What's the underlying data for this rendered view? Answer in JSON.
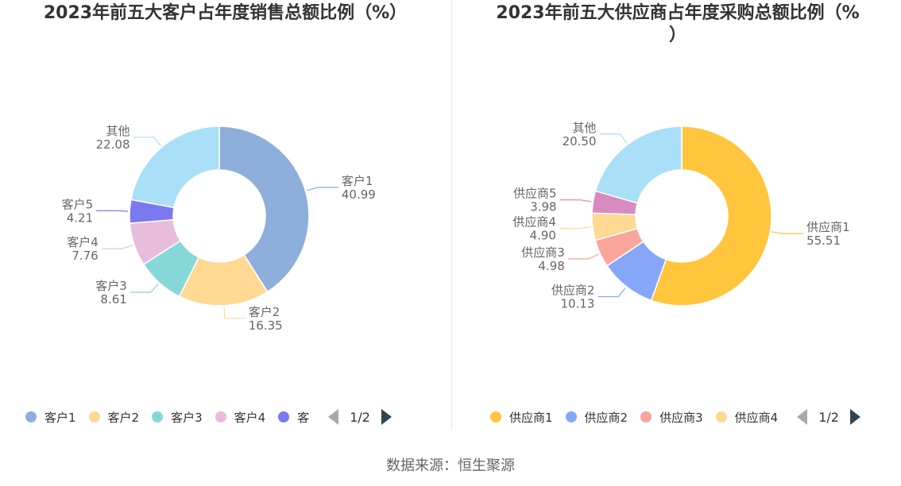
{
  "chart_data": [
    {
      "type": "pie",
      "title": "2023年前五大客户占年度销售总额比例（%）",
      "series": [
        {
          "name": "客户1",
          "value": 40.99,
          "value_label": "40.99",
          "color": "#8eaedb"
        },
        {
          "name": "客户2",
          "value": 16.35,
          "value_label": "16.35",
          "color": "#ffd993"
        },
        {
          "name": "客户3",
          "value": 8.61,
          "value_label": "8.61",
          "color": "#86d8d8"
        },
        {
          "name": "客户4",
          "value": 7.76,
          "value_label": "7.76",
          "color": "#e8bddc"
        },
        {
          "name": "客户5",
          "value": 4.21,
          "value_label": "4.21",
          "color": "#7b78f0"
        },
        {
          "name": "其他",
          "value": 22.08,
          "value_label": "22.08",
          "color": "#aadff8"
        }
      ],
      "legend": {
        "items": [
          {
            "name": "客户1",
            "color": "#8eaedb"
          },
          {
            "name": "客户2",
            "color": "#ffd993"
          },
          {
            "name": "客户3",
            "color": "#86d8d8"
          },
          {
            "name": "客户4",
            "color": "#e8bddc"
          },
          {
            "name": "客",
            "color": "#7b78f0"
          }
        ],
        "page": "1/2",
        "placement": "bottom"
      }
    },
    {
      "type": "pie",
      "title_line1": "2023年前五大供应商占年度采购总额比例（%",
      "title_line2": "）",
      "series": [
        {
          "name": "供应商1",
          "value": 55.51,
          "value_label": "55.51",
          "color": "#ffc53d"
        },
        {
          "name": "供应商2",
          "value": 10.13,
          "value_label": "10.13",
          "color": "#86a7f8"
        },
        {
          "name": "供应商3",
          "value": 4.98,
          "value_label": "4.98",
          "color": "#f9a59b"
        },
        {
          "name": "供应商4",
          "value": 4.9,
          "value_label": "4.90",
          "color": "#ffd993"
        },
        {
          "name": "供应商5",
          "value": 3.98,
          "value_label": "3.98",
          "color": "#d98bc0"
        },
        {
          "name": "其他",
          "value": 20.5,
          "value_label": "20.50",
          "color": "#aadff8"
        }
      ],
      "legend": {
        "items": [
          {
            "name": "供应商1",
            "color": "#ffc53d"
          },
          {
            "name": "供应商2",
            "color": "#86a7f8"
          },
          {
            "name": "供应商3",
            "color": "#f9a59b"
          },
          {
            "name": "供应商4",
            "color": "#ffd993"
          }
        ],
        "page": "1/2",
        "placement": "bottom"
      }
    }
  ],
  "footer": {
    "source": "数据来源：恒生聚源"
  }
}
